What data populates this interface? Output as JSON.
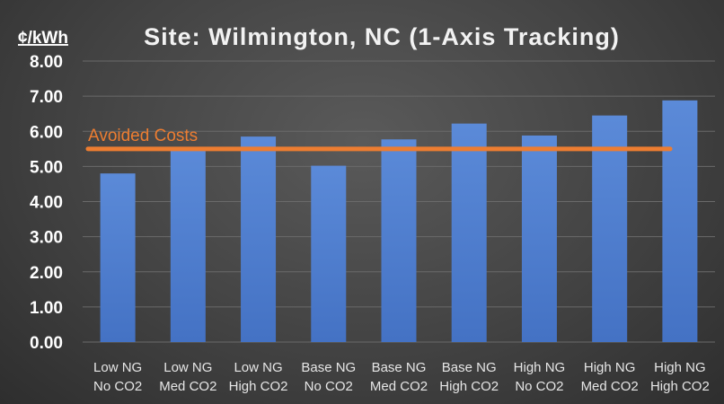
{
  "chart_data": {
    "type": "bar",
    "title": "Site: Wilmington, NC (1-Axis Tracking)",
    "ylabel": "¢/kWh",
    "xlabel": "",
    "categories": [
      [
        "Low NG",
        "No CO2"
      ],
      [
        "Low NG",
        "Med CO2"
      ],
      [
        "Low NG",
        "High CO2"
      ],
      [
        "Base NG",
        "No CO2"
      ],
      [
        "Base NG",
        "Med CO2"
      ],
      [
        "Base NG",
        "High CO2"
      ],
      [
        "High NG",
        "No CO2"
      ],
      [
        "High NG",
        "Med CO2"
      ],
      [
        "High NG",
        "High CO2"
      ]
    ],
    "values": [
      4.8,
      5.5,
      5.85,
      5.02,
      5.77,
      6.22,
      5.88,
      6.45,
      6.88
    ],
    "ylim": [
      0,
      8
    ],
    "yticks": [
      "0.00",
      "1.00",
      "2.00",
      "3.00",
      "4.00",
      "5.00",
      "6.00",
      "7.00",
      "8.00"
    ],
    "reference_line": {
      "label": "Avoided Costs",
      "value": 5.5
    },
    "grid": true,
    "legend": "none",
    "colors": {
      "bar": "#4472C4",
      "bar_top": "#5b8ad8",
      "reference_line": "#ED7D31",
      "gridline": "#6a6a6a"
    }
  }
}
